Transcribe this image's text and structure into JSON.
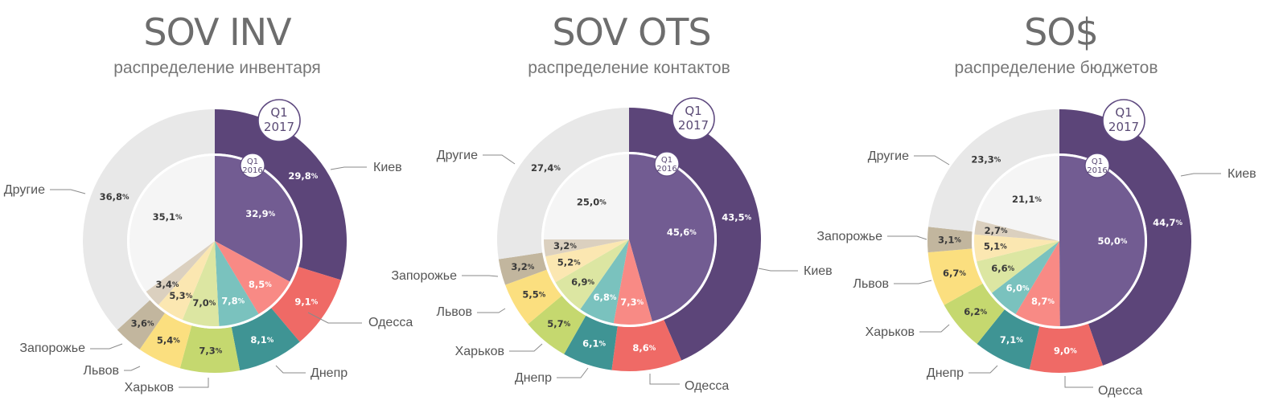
{
  "colors": {
    "ring_gap": "#ffffff",
    "leader": "#8a8a8a",
    "badge_stroke": "#5f4a80",
    "text_dark": "#3a3a3a",
    "text_light": "#ffffff"
  },
  "badges": {
    "outer_line1": "Q1",
    "outer_line2": "2017",
    "inner_line1": "Q1",
    "inner_line2": "2016"
  },
  "chart_data": [
    {
      "type": "pie",
      "title": "SOV INV",
      "subtitle": "распределение инвентаря",
      "segments": [
        {
          "name": "Киев",
          "outer": 29.8,
          "inner": 32.9,
          "outer_label": "29,8",
          "inner_label": "32,9",
          "outer_color": "#5c4579",
          "inner_color": "#725c92"
        },
        {
          "name": "Одесса",
          "outer": 9.1,
          "inner": 8.5,
          "outer_label": "9,1",
          "inner_label": "8,5",
          "outer_color": "#ef6a66",
          "inner_color": "#f88a85"
        },
        {
          "name": "Днепр",
          "outer": 8.1,
          "inner": 7.8,
          "outer_label": "8,1",
          "inner_label": "7,8",
          "outer_color": "#3f9494",
          "inner_color": "#7ac2be"
        },
        {
          "name": "Харьков",
          "outer": 7.3,
          "inner": 7.0,
          "outer_label": "7,3",
          "inner_label": "7,0",
          "outer_color": "#c5d86f",
          "inner_color": "#dce6a2"
        },
        {
          "name": "Львов",
          "outer": 5.4,
          "inner": 5.3,
          "outer_label": "5,4",
          "inner_label": "5,3",
          "outer_color": "#fbdf7f",
          "inner_color": "#fbe7b1"
        },
        {
          "name": "Запорожье",
          "outer": 3.6,
          "inner": 3.4,
          "outer_label": "3,6",
          "inner_label": "3,4",
          "outer_color": "#c2b69e",
          "inner_color": "#dbd0bf"
        },
        {
          "name": "Другие",
          "outer": 36.8,
          "inner": 35.1,
          "outer_label": "36,8",
          "inner_label": "35,1",
          "outer_color": "#e8e8e8",
          "inner_color": "#f5f5f5"
        }
      ]
    },
    {
      "type": "pie",
      "title": "SOV OTS",
      "subtitle": "распределение контактов",
      "segments": [
        {
          "name": "Киев",
          "outer": 43.5,
          "inner": 45.6,
          "outer_label": "43,5",
          "inner_label": "45,6",
          "outer_color": "#5c4579",
          "inner_color": "#725c92"
        },
        {
          "name": "Одесса",
          "outer": 8.6,
          "inner": 7.3,
          "outer_label": "8,6",
          "inner_label": "7,3",
          "outer_color": "#ef6a66",
          "inner_color": "#f88a85"
        },
        {
          "name": "Днепр",
          "outer": 6.1,
          "inner": 6.8,
          "outer_label": "6,1",
          "inner_label": "6,8",
          "outer_color": "#3f9494",
          "inner_color": "#7ac2be"
        },
        {
          "name": "Харьков",
          "outer": 5.7,
          "inner": 6.9,
          "outer_label": "5,7",
          "inner_label": "6,9",
          "outer_color": "#c5d86f",
          "inner_color": "#dce6a2"
        },
        {
          "name": "Львов",
          "outer": 5.5,
          "inner": 5.2,
          "outer_label": "5,5",
          "inner_label": "5,2",
          "outer_color": "#fbdf7f",
          "inner_color": "#fbe7b1"
        },
        {
          "name": "Запорожье",
          "outer": 3.2,
          "inner": 3.2,
          "outer_label": "3,2",
          "inner_label": "3,2",
          "outer_color": "#c2b69e",
          "inner_color": "#dbd0bf"
        },
        {
          "name": "Другие",
          "outer": 27.4,
          "inner": 25.0,
          "outer_label": "27,4",
          "inner_label": "25,0",
          "outer_color": "#e8e8e8",
          "inner_color": "#f5f5f5"
        }
      ]
    },
    {
      "type": "pie",
      "title": "SO$",
      "subtitle": "распределение бюджетов",
      "segments": [
        {
          "name": "Киев",
          "outer": 44.7,
          "inner": 50.0,
          "outer_label": "44,7",
          "inner_label": "50,0",
          "outer_color": "#5c4579",
          "inner_color": "#725c92"
        },
        {
          "name": "Одесса",
          "outer": 9.0,
          "inner": 8.7,
          "outer_label": "9,0",
          "inner_label": "8,7",
          "outer_color": "#ef6a66",
          "inner_color": "#f88a85"
        },
        {
          "name": "Днепр",
          "outer": 7.1,
          "inner": 6.0,
          "outer_label": "7,1",
          "inner_label": "6,0",
          "outer_color": "#3f9494",
          "inner_color": "#7ac2be"
        },
        {
          "name": "Харьков",
          "outer": 6.2,
          "inner": 6.6,
          "outer_label": "6,2",
          "inner_label": "6,6",
          "outer_color": "#c5d86f",
          "inner_color": "#dce6a2"
        },
        {
          "name": "Львов",
          "outer": 6.7,
          "inner": 5.1,
          "outer_label": "6,7",
          "inner_label": "5,1",
          "outer_color": "#fbdf7f",
          "inner_color": "#fbe7b1"
        },
        {
          "name": "Запорожье",
          "outer": 3.1,
          "inner": 2.7,
          "outer_label": "3,1",
          "inner_label": "2,7",
          "outer_color": "#c2b69e",
          "inner_color": "#dbd0bf"
        },
        {
          "name": "Другие",
          "outer": 23.3,
          "inner": 21.1,
          "outer_label": "23,3",
          "inner_label": "21,1",
          "outer_color": "#e8e8e8",
          "inner_color": "#f5f5f5"
        }
      ]
    }
  ]
}
